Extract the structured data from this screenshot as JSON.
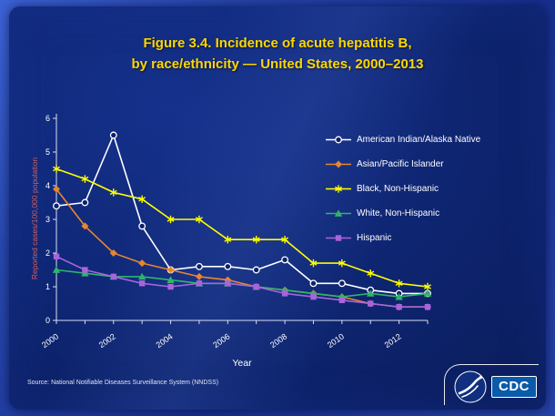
{
  "title": {
    "line1": "Figure 3.4. Incidence of acute hepatitis B,",
    "line2": "by race/ethnicity — United States, 2000–2013"
  },
  "chart_data": {
    "type": "line",
    "x": [
      2000,
      2001,
      2002,
      2003,
      2004,
      2005,
      2006,
      2007,
      2008,
      2009,
      2010,
      2011,
      2012,
      2013
    ],
    "series": [
      {
        "name": "American Indian/Alaska Native",
        "color": "#ffffff",
        "marker": "circle-open",
        "values": [
          3.4,
          3.5,
          5.5,
          2.8,
          1.5,
          1.6,
          1.6,
          1.5,
          1.8,
          1.1,
          1.1,
          0.9,
          0.8,
          0.8
        ]
      },
      {
        "name": "Asian/Pacific Islander",
        "color": "#e8862d",
        "marker": "diamond",
        "values": [
          3.9,
          2.8,
          2.0,
          1.7,
          1.5,
          1.3,
          1.2,
          1.0,
          0.9,
          0.8,
          0.7,
          0.5,
          0.4,
          0.4
        ]
      },
      {
        "name": "Black, Non-Hispanic",
        "color": "#ffff00",
        "marker": "star",
        "values": [
          4.5,
          4.2,
          3.8,
          3.6,
          3.0,
          3.0,
          2.4,
          2.4,
          2.4,
          1.7,
          1.7,
          1.4,
          1.1,
          1.0
        ]
      },
      {
        "name": "White, Non-Hispanic",
        "color": "#2eb56a",
        "marker": "triangle",
        "values": [
          1.5,
          1.4,
          1.3,
          1.3,
          1.2,
          1.1,
          1.1,
          1.0,
          0.9,
          0.8,
          0.7,
          0.8,
          0.7,
          0.8
        ]
      },
      {
        "name": "Hispanic",
        "color": "#a864dd",
        "marker": "square",
        "values": [
          1.9,
          1.5,
          1.3,
          1.1,
          1.0,
          1.1,
          1.1,
          1.0,
          0.8,
          0.7,
          0.6,
          0.5,
          0.4,
          0.4
        ]
      }
    ],
    "title": "Figure 3.4. Incidence of acute hepatitis B, by race/ethnicity — United States, 2000–2013",
    "xlabel": "Year",
    "ylabel": "Reported cases/100,000 population",
    "ylim": [
      0,
      6
    ],
    "yticks": [
      0,
      1,
      2,
      3,
      4,
      5,
      6
    ],
    "xticklabels": [
      "2000",
      "2002",
      "2004",
      "2006",
      "2008",
      "2010",
      "2012"
    ],
    "grid": false,
    "legend_position": "top-right"
  },
  "source": "Source: National Notifiable Diseases Surveillance System (NNDSS)",
  "logo": {
    "cdc_label": "CDC"
  }
}
